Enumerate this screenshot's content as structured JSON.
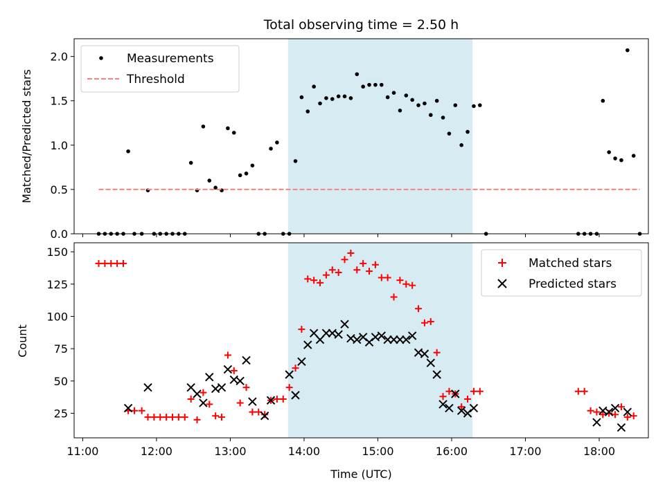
{
  "chart_data": [
    {
      "type": "scatter",
      "title": "Total observing time = 2.50 h",
      "xlabel": "",
      "ylabel": "Matched/Predicted stars",
      "xlim": [
        "10:53",
        "18:40"
      ],
      "ylim": [
        0,
        2.2
      ],
      "yticks": [
        0.0,
        0.5,
        1.0,
        1.5,
        2.0
      ],
      "ytick_labels": [
        "0.0",
        "0.5",
        "1.0",
        "1.5",
        "2.0"
      ],
      "xticks": [
        "11:00",
        "12:00",
        "13:00",
        "14:00",
        "15:00",
        "16:00",
        "17:00",
        "18:00"
      ],
      "shaded_span": {
        "start": "13:47",
        "end": "16:17",
        "color": "#add8e6"
      },
      "legend": {
        "placement": "upper left",
        "entries": [
          "Measurements",
          "Threshold"
        ]
      },
      "series": [
        {
          "name": "Measurements",
          "marker": "dot",
          "color": "#000000",
          "points": [
            [
              "11:13",
              0
            ],
            [
              "11:18",
              0
            ],
            [
              "11:23",
              0
            ],
            [
              "11:28",
              0
            ],
            [
              "11:33",
              0
            ],
            [
              "11:37",
              0.93
            ],
            [
              "11:42",
              0
            ],
            [
              "11:48",
              0
            ],
            [
              "11:53",
              0.49
            ],
            [
              "11:58",
              0
            ],
            [
              "12:03",
              0
            ],
            [
              "12:08",
              0
            ],
            [
              "12:13",
              0
            ],
            [
              "12:18",
              0
            ],
            [
              "12:23",
              0
            ],
            [
              "12:28",
              0.8
            ],
            [
              "12:33",
              0.49
            ],
            [
              "12:38",
              1.21
            ],
            [
              "12:43",
              0.6
            ],
            [
              "12:48",
              0.52
            ],
            [
              "12:53",
              0.49
            ],
            [
              "12:58",
              1.19
            ],
            [
              "13:03",
              1.14
            ],
            [
              "13:08",
              0.66
            ],
            [
              "13:13",
              0.68
            ],
            [
              "13:18",
              0.77
            ],
            [
              "13:23",
              0
            ],
            [
              "13:28",
              0
            ],
            [
              "13:33",
              0.96
            ],
            [
              "13:38",
              1.03
            ],
            [
              "13:43",
              0
            ],
            [
              "13:48",
              0
            ],
            [
              "13:53",
              0.82
            ],
            [
              "13:58",
              1.54
            ],
            [
              "14:03",
              1.38
            ],
            [
              "14:08",
              1.66
            ],
            [
              "14:13",
              1.47
            ],
            [
              "14:18",
              1.53
            ],
            [
              "14:23",
              1.52
            ],
            [
              "14:28",
              1.55
            ],
            [
              "14:33",
              1.55
            ],
            [
              "14:38",
              1.53
            ],
            [
              "14:43",
              1.8
            ],
            [
              "14:48",
              1.66
            ],
            [
              "14:53",
              1.68
            ],
            [
              "14:58",
              1.68
            ],
            [
              "15:03",
              1.68
            ],
            [
              "15:08",
              1.54
            ],
            [
              "15:13",
              1.59
            ],
            [
              "15:18",
              1.39
            ],
            [
              "15:23",
              1.56
            ],
            [
              "15:28",
              1.51
            ],
            [
              "15:33",
              1.45
            ],
            [
              "15:38",
              1.47
            ],
            [
              "15:43",
              1.34
            ],
            [
              "15:48",
              1.5
            ],
            [
              "15:53",
              1.31
            ],
            [
              "15:58",
              1.13
            ],
            [
              "16:03",
              1.45
            ],
            [
              "16:08",
              1.0
            ],
            [
              "16:13",
              1.15
            ],
            [
              "16:18",
              1.44
            ],
            [
              "16:23",
              1.45
            ],
            [
              "16:28",
              0
            ],
            [
              "17:43",
              0
            ],
            [
              "17:48",
              0
            ],
            [
              "17:53",
              0
            ],
            [
              "17:58",
              0
            ],
            [
              "18:03",
              1.5
            ],
            [
              "18:08",
              0.92
            ],
            [
              "18:13",
              0.85
            ],
            [
              "18:18",
              0.83
            ],
            [
              "18:23",
              2.07
            ],
            [
              "18:28",
              0.88
            ],
            [
              "18:33",
              0
            ]
          ]
        },
        {
          "name": "Threshold",
          "marker": "dashed-line",
          "color": "#ff7f7f",
          "points": [
            [
              "11:13",
              0.5
            ],
            [
              "18:33",
              0.5
            ]
          ]
        }
      ]
    },
    {
      "type": "scatter",
      "title": "",
      "xlabel": "Time (UTC)",
      "ylabel": "Count",
      "xlim": [
        "10:53",
        "18:40"
      ],
      "ylim": [
        6,
        157
      ],
      "yticks": [
        25,
        50,
        75,
        100,
        125,
        150
      ],
      "ytick_labels": [
        "25",
        "50",
        "75",
        "100",
        "125",
        "150"
      ],
      "xticks": [
        "11:00",
        "12:00",
        "13:00",
        "14:00",
        "15:00",
        "16:00",
        "17:00",
        "18:00"
      ],
      "xtick_labels": [
        "11:00",
        "12:00",
        "13:00",
        "14:00",
        "15:00",
        "16:00",
        "17:00",
        "18:00"
      ],
      "shaded_span": {
        "start": "13:47",
        "end": "16:17",
        "color": "#add8e6"
      },
      "legend": {
        "placement": "upper right",
        "entries": [
          "Matched stars",
          "Predicted stars"
        ]
      },
      "series": [
        {
          "name": "Matched stars",
          "marker": "plus",
          "color": "#ff0000",
          "points": [
            [
              "11:13",
              141
            ],
            [
              "11:18",
              141
            ],
            [
              "11:23",
              141
            ],
            [
              "11:28",
              141
            ],
            [
              "11:33",
              141
            ],
            [
              "11:37",
              27
            ],
            [
              "11:42",
              27
            ],
            [
              "11:48",
              27
            ],
            [
              "11:53",
              22
            ],
            [
              "11:58",
              22
            ],
            [
              "12:03",
              22
            ],
            [
              "12:08",
              22
            ],
            [
              "12:13",
              22
            ],
            [
              "12:18",
              22
            ],
            [
              "12:23",
              22
            ],
            [
              "12:28",
              36
            ],
            [
              "12:33",
              20
            ],
            [
              "12:38",
              41
            ],
            [
              "12:43",
              32
            ],
            [
              "12:48",
              23
            ],
            [
              "12:53",
              22
            ],
            [
              "12:58",
              70
            ],
            [
              "13:03",
              58
            ],
            [
              "13:08",
              33
            ],
            [
              "13:13",
              45
            ],
            [
              "13:18",
              26
            ],
            [
              "13:23",
              26
            ],
            [
              "13:28",
              24
            ],
            [
              "13:33",
              35
            ],
            [
              "13:38",
              36
            ],
            [
              "13:43",
              36
            ],
            [
              "13:48",
              45
            ],
            [
              "13:53",
              60
            ],
            [
              "13:58",
              90
            ],
            [
              "14:03",
              129
            ],
            [
              "14:08",
              128
            ],
            [
              "14:13",
              126
            ],
            [
              "14:18",
              132
            ],
            [
              "14:23",
              136
            ],
            [
              "14:28",
              134
            ],
            [
              "14:33",
              144
            ],
            [
              "14:38",
              149
            ],
            [
              "14:43",
              136
            ],
            [
              "14:48",
              141
            ],
            [
              "14:53",
              135
            ],
            [
              "14:58",
              140
            ],
            [
              "15:03",
              130
            ],
            [
              "15:08",
              130
            ],
            [
              "15:13",
              115
            ],
            [
              "15:18",
              128
            ],
            [
              "15:23",
              125
            ],
            [
              "15:28",
              124
            ],
            [
              "15:33",
              106
            ],
            [
              "15:38",
              95
            ],
            [
              "15:43",
              96
            ],
            [
              "15:48",
              72
            ],
            [
              "15:53",
              38
            ],
            [
              "15:58",
              42
            ],
            [
              "16:03",
              40
            ],
            [
              "16:08",
              30
            ],
            [
              "16:13",
              36
            ],
            [
              "16:18",
              42
            ],
            [
              "16:23",
              42
            ],
            [
              "17:43",
              42
            ],
            [
              "17:48",
              42
            ],
            [
              "17:53",
              27
            ],
            [
              "17:58",
              26
            ],
            [
              "18:03",
              24
            ],
            [
              "18:08",
              25
            ],
            [
              "18:13",
              24
            ],
            [
              "18:18",
              30
            ],
            [
              "18:23",
              22
            ],
            [
              "18:28",
              23
            ]
          ]
        },
        {
          "name": "Predicted stars",
          "marker": "x",
          "color": "#000000",
          "points": [
            [
              "11:37",
              29
            ],
            [
              "11:53",
              45
            ],
            [
              "12:28",
              45
            ],
            [
              "12:33",
              40
            ],
            [
              "12:38",
              33
            ],
            [
              "12:43",
              53
            ],
            [
              "12:48",
              44
            ],
            [
              "12:53",
              45
            ],
            [
              "12:58",
              59
            ],
            [
              "13:03",
              51
            ],
            [
              "13:08",
              50
            ],
            [
              "13:13",
              66
            ],
            [
              "13:18",
              34
            ],
            [
              "13:28",
              23
            ],
            [
              "13:33",
              35
            ],
            [
              "13:48",
              55
            ],
            [
              "13:53",
              39
            ],
            [
              "13:58",
              65
            ],
            [
              "14:03",
              78
            ],
            [
              "14:08",
              87
            ],
            [
              "14:13",
              82
            ],
            [
              "14:18",
              87
            ],
            [
              "14:23",
              87
            ],
            [
              "14:28",
              86
            ],
            [
              "14:33",
              94
            ],
            [
              "14:38",
              83
            ],
            [
              "14:43",
              82
            ],
            [
              "14:48",
              84
            ],
            [
              "14:53",
              80
            ],
            [
              "14:58",
              84
            ],
            [
              "15:03",
              85
            ],
            [
              "15:08",
              82
            ],
            [
              "15:13",
              82
            ],
            [
              "15:18",
              82
            ],
            [
              "15:23",
              82
            ],
            [
              "15:28",
              85
            ],
            [
              "15:33",
              72
            ],
            [
              "15:38",
              71
            ],
            [
              "15:43",
              64
            ],
            [
              "15:48",
              55
            ],
            [
              "15:53",
              32
            ],
            [
              "15:58",
              29
            ],
            [
              "16:03",
              40
            ],
            [
              "16:08",
              27
            ],
            [
              "16:13",
              25
            ],
            [
              "16:18",
              29
            ],
            [
              "17:58",
              18
            ],
            [
              "18:03",
              27
            ],
            [
              "18:08",
              26
            ],
            [
              "18:13",
              29
            ],
            [
              "18:18",
              14
            ],
            [
              "18:23",
              26
            ]
          ]
        }
      ]
    }
  ]
}
